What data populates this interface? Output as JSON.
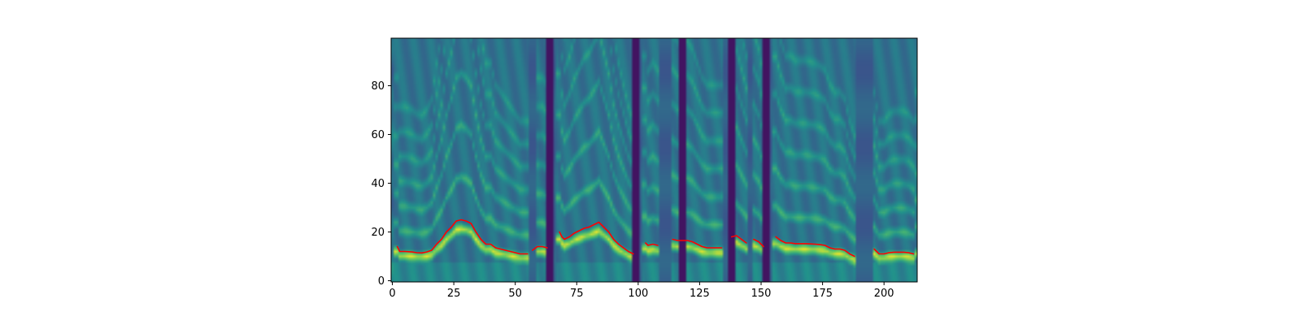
{
  "chart_data": {
    "type": "heatmap",
    "title": "",
    "xlabel": "",
    "ylabel": "",
    "xlim": [
      -0.5,
      213.5
    ],
    "ylim": [
      -0.5,
      99.5
    ],
    "xticks": [
      0,
      25,
      50,
      75,
      100,
      125,
      150,
      175,
      200
    ],
    "yticks": [
      0,
      20,
      40,
      60,
      80
    ],
    "grid": false,
    "legend": "none",
    "heatmap": {
      "colormap": "viridis",
      "rows": 100,
      "cols": 214,
      "dark_columns": [
        64,
        99,
        118,
        138,
        152
      ]
    },
    "series": [
      {
        "color": "#ff0000",
        "segments": [
          {
            "x": [
              2,
              3,
              5,
              8,
              10,
              12,
              14,
              16,
              18,
              20,
              22,
              24,
              26,
              28,
              30,
              32,
              34,
              36,
              38,
              40,
              42,
              44,
              46,
              48,
              50,
              52,
              55
            ],
            "y": [
              14,
              12,
              12,
              11.8,
              11.5,
              11.4,
              11.8,
              12.5,
              15,
              17,
              20,
              22,
              24.5,
              25,
              24.5,
              23.5,
              20,
              17,
              15,
              15,
              13.5,
              13,
              12.5,
              12,
              11.5,
              11,
              11
            ]
          },
          {
            "x": [
              57,
              59,
              61,
              63
            ],
            "y": [
              12.5,
              14,
              14,
              13.5
            ]
          },
          {
            "x": [
              68,
              69,
              70,
              72,
              74,
              76,
              78,
              80,
              82,
              84,
              86,
              88,
              90,
              92,
              94,
              96,
              98
            ],
            "y": [
              20,
              18,
              17,
              18,
              19.5,
              20.5,
              21.5,
              22,
              23,
              24,
              22,
              20,
              17,
              15,
              13.5,
              12,
              11
            ]
          },
          {
            "x": [
              103,
              104,
              106,
              108
            ],
            "y": [
              15.5,
              14.5,
              15,
              14.5
            ]
          },
          {
            "x": [
              114,
              116,
              118,
              120,
              122,
              124,
              126,
              128,
              130,
              132,
              134
            ],
            "y": [
              17,
              16.5,
              16.5,
              16.5,
              16,
              15,
              14,
              13.5,
              13.5,
              13.5,
              13.5
            ]
          },
          {
            "x": [
              138,
              140,
              142,
              144
            ],
            "y": [
              18,
              18.5,
              17,
              15.5
            ]
          },
          {
            "x": [
              147,
              149,
              151
            ],
            "y": [
              17,
              16,
              14
            ]
          },
          {
            "x": [
              156,
              158,
              160,
              162,
              164,
              166,
              168,
              170,
              172,
              174,
              176,
              178,
              180,
              182,
              184,
              186,
              188
            ],
            "y": [
              18,
              16.5,
              15.5,
              15.5,
              15.2,
              15.2,
              15.2,
              15.1,
              15,
              14.8,
              14.5,
              13.5,
              13,
              13,
              12.5,
              11,
              10
            ]
          },
          {
            "x": [
              196,
              198,
              200,
              202,
              204,
              206,
              208,
              210,
              212
            ],
            "y": [
              13,
              11,
              11,
              11.5,
              11.7,
              11.7,
              11.7,
              11.5,
              11
            ]
          }
        ]
      }
    ]
  }
}
